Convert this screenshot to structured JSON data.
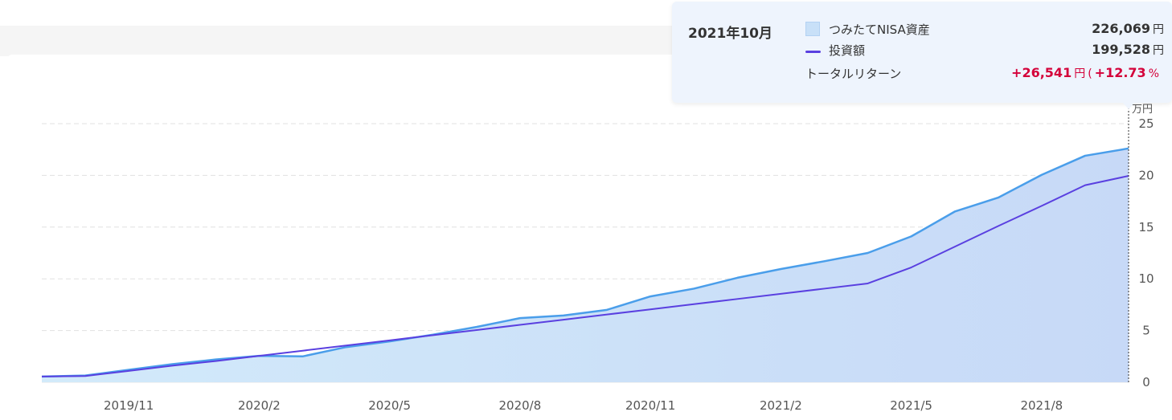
{
  "tooltip": {
    "date": "2021年10月",
    "asset_label": "つみたてNISA資産",
    "asset_value": "226,069",
    "invest_label": "投資額",
    "invest_value": "199,528",
    "return_label": "トータルリターン",
    "return_value": "+26,541",
    "return_pct": "+12.73",
    "unit_yen": "円",
    "unit_pct": "%",
    "paren_open": "(",
    "paren_close": ""
  },
  "chart_data": {
    "type": "area",
    "y_unit_label": "万円",
    "ylim": [
      0,
      25
    ],
    "y_ticks": [
      0,
      5,
      10,
      15,
      20,
      25
    ],
    "x_tick_labels": [
      "2019/11",
      "2020/2",
      "2020/5",
      "2020/8",
      "2020/11",
      "2021/2",
      "2021/5",
      "2021/8"
    ],
    "x": [
      "2019/9",
      "2019/10",
      "2019/11",
      "2019/12",
      "2020/1",
      "2020/2",
      "2020/3",
      "2020/4",
      "2020/5",
      "2020/6",
      "2020/7",
      "2020/8",
      "2020/9",
      "2020/10",
      "2020/11",
      "2020/12",
      "2021/1",
      "2021/2",
      "2021/3",
      "2021/4",
      "2021/5",
      "2021/6",
      "2021/7",
      "2021/8",
      "2021/9",
      "2021/10"
    ],
    "grid": true,
    "series": [
      {
        "name": "つみたてNISA資産",
        "type": "area",
        "values": [
          0.55,
          0.65,
          1.2,
          1.75,
          2.2,
          2.55,
          2.5,
          3.4,
          3.95,
          4.6,
          5.35,
          6.2,
          6.45,
          7.0,
          8.3,
          9.05,
          10.1,
          10.95,
          11.7,
          12.5,
          14.1,
          16.5,
          17.85,
          20.05,
          21.9,
          22.6069
        ]
      },
      {
        "name": "投資額",
        "type": "line",
        "values": [
          0.55,
          0.6,
          1.1,
          1.6,
          2.05,
          2.55,
          3.05,
          3.55,
          4.05,
          4.55,
          5.05,
          5.55,
          6.05,
          6.55,
          7.05,
          7.55,
          8.05,
          8.55,
          9.05,
          9.55,
          11.1,
          13.1,
          15.1,
          17.05,
          19.05,
          19.9528
        ]
      }
    ],
    "colors": {
      "asset_line": "#4a9eea",
      "asset_fill_left": "#d2eafa",
      "asset_fill_right": "#c7d9f7",
      "invest_line": "#5a40e0",
      "grid": "#e0e0e0",
      "axis_text": "#555555"
    }
  }
}
